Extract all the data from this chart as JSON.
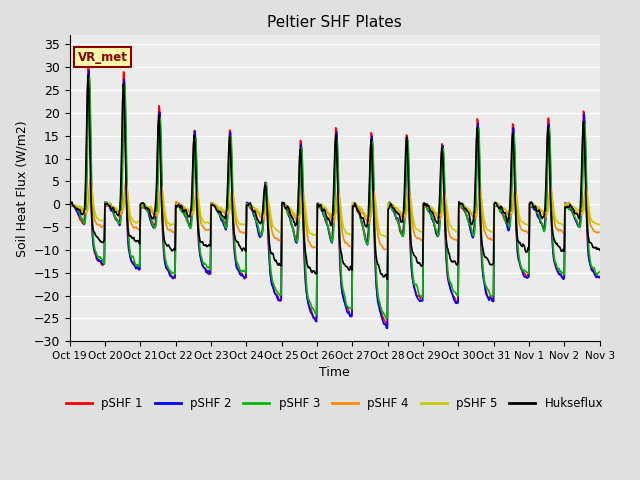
{
  "title": "Peltier SHF Plates",
  "xlabel": "Time",
  "ylabel": "Soil Heat Flux (W/m2)",
  "ylim": [
    -30,
    37
  ],
  "yticks": [
    -30,
    -25,
    -20,
    -15,
    -10,
    -5,
    0,
    5,
    10,
    15,
    20,
    25,
    30,
    35
  ],
  "xtick_labels": [
    "Oct 19",
    "Oct 20",
    "Oct 21",
    "Oct 22",
    "Oct 23",
    "Oct 24",
    "Oct 25",
    "Oct 26",
    "Oct 27",
    "Oct 28",
    "Oct 29",
    "Oct 30",
    "Oct 31",
    "Nov 1",
    "Nov 2",
    "Nov 3"
  ],
  "series_names": [
    "pSHF 1",
    "pSHF 2",
    "pSHF 3",
    "pSHF 4",
    "pSHF 5",
    "Hukseflux"
  ],
  "series_colors": [
    "#FF0000",
    "#0000FF",
    "#00BB00",
    "#FF8800",
    "#CCCC00",
    "#000000"
  ],
  "series_lw": [
    1.2,
    1.2,
    1.2,
    1.2,
    1.2,
    1.2
  ],
  "annotation_text": "VR_met",
  "annotation_fg": "#8B0000",
  "annotation_bg": "#FFFAAA",
  "annotation_edge": "#8B0000",
  "bg_color": "#E0E0E0",
  "plot_bg": "#EBEBEB",
  "grid_color": "#FFFFFF",
  "days": 15,
  "pts_per_day": 48,
  "day_peak_hours": 13,
  "peak_amps": [
    32,
    30,
    22,
    17,
    17,
    5,
    14,
    17,
    16,
    16,
    14,
    19,
    18,
    19,
    21
  ],
  "night_mins": [
    -13,
    -14,
    -16,
    -15,
    -16,
    -21,
    -25,
    -24,
    -26,
    -21,
    -21,
    -21,
    -16,
    -16,
    -16
  ],
  "pSHF4_peak_scale": 0.18,
  "pSHF5_peak_scale": 0.12,
  "pSHF4_night_scale": 0.38,
  "pSHF5_night_scale": 0.28,
  "hukse_peak_scale": 0.88,
  "hukse_night_scale": 0.62,
  "noise_seed": 42
}
